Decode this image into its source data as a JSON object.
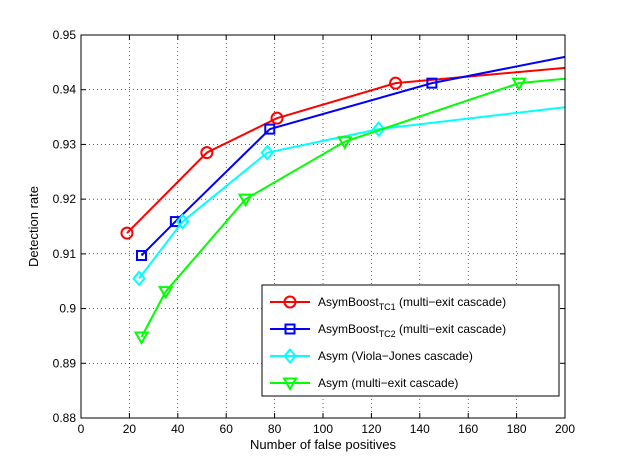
{
  "chart_data": {
    "type": "line",
    "title": "",
    "xlabel": "Number of false positives",
    "ylabel": "Detection rate",
    "xlim": [
      0,
      200
    ],
    "ylim": [
      0.88,
      0.95
    ],
    "xticks": [
      0,
      20,
      40,
      60,
      80,
      100,
      120,
      140,
      160,
      180,
      200
    ],
    "xtick_labels": [
      "0",
      "20",
      "40",
      "60",
      "80",
      "100",
      "120",
      "140",
      "160",
      "180",
      "200"
    ],
    "yticks": [
      0.88,
      0.89,
      0.9,
      0.91,
      0.92,
      0.93,
      0.94,
      0.95
    ],
    "ytick_labels": [
      "0.88",
      "0.89",
      "0.9",
      "0.91",
      "0.92",
      "0.93",
      "0.94",
      "0.95"
    ],
    "grid": true,
    "legend_position": "bottom-right",
    "series": [
      {
        "name_main": "AsymBoost",
        "name_sub": "TC1",
        "name_rest": " (multi−exit cascade)",
        "color": "#ff0000",
        "marker": "circle",
        "x": [
          19,
          52,
          81,
          130,
          200
        ],
        "y": [
          0.9138,
          0.9285,
          0.9348,
          0.9412,
          0.944
        ],
        "marker_points": 4
      },
      {
        "name_main": "AsymBoost",
        "name_sub": "TC2",
        "name_rest": " (multi−exit cascade)",
        "color": "#0000ff",
        "marker": "square",
        "x": [
          25,
          39,
          78,
          145,
          200
        ],
        "y": [
          0.9097,
          0.9159,
          0.9328,
          0.9412,
          0.946
        ],
        "marker_points": 4
      },
      {
        "name_main": "Asym (Viola−Jones cascade)",
        "name_sub": "",
        "name_rest": "",
        "color": "#00ffff",
        "marker": "diamond",
        "x": [
          24,
          42,
          77,
          123,
          200
        ],
        "y": [
          0.9055,
          0.9159,
          0.9285,
          0.9328,
          0.9368
        ],
        "marker_points": 4
      },
      {
        "name_main": "Asym (multi−exit cascade)",
        "name_sub": "",
        "name_rest": "",
        "color": "#00ff00",
        "marker": "triangle-down",
        "x": [
          25,
          35,
          68,
          109,
          181,
          200
        ],
        "y": [
          0.8948,
          0.9031,
          0.92,
          0.9305,
          0.9412,
          0.942
        ],
        "marker_points": 5
      }
    ]
  }
}
